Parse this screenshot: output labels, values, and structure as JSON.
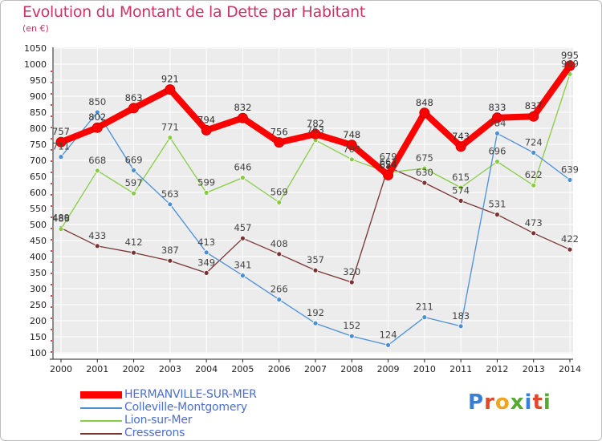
{
  "chart_data": {
    "type": "line",
    "title": "Evolution du Montant de la Dette par Habitant",
    "unit_label": "(en €)",
    "x": [
      "2000",
      "2001",
      "2002",
      "2003",
      "2004",
      "2005",
      "2006",
      "2007",
      "2008",
      "2009",
      "2010",
      "2011",
      "2012",
      "2013",
      "2014"
    ],
    "ylim": [
      100,
      1050
    ],
    "yticks": [
      100,
      150,
      200,
      250,
      300,
      350,
      400,
      450,
      500,
      550,
      600,
      650,
      700,
      750,
      800,
      850,
      900,
      950,
      1000,
      1050
    ],
    "grid": true,
    "legend_position": "bottom-left",
    "series": [
      {
        "name": "HERMANVILLE-SUR-MER",
        "color": "#ff0000",
        "values": [
          757,
          802,
          863,
          921,
          794,
          832,
          756,
          782,
          748,
          654,
          848,
          743,
          833,
          837,
          995
        ]
      },
      {
        "name": "Colleville-Montgomery",
        "color": "#4a90d9",
        "values": [
          711,
          850,
          669,
          563,
          413,
          341,
          266,
          192,
          152,
          124,
          211,
          183,
          784,
          724,
          639
        ]
      },
      {
        "name": "Lion-sur-Mer",
        "color": "#88cc44",
        "values": [
          486,
          668,
          597,
          771,
          599,
          646,
          569,
          763,
          703,
          662,
          675,
          615,
          696,
          622,
          969
        ]
      },
      {
        "name": "Cresserons",
        "color": "#7a3333",
        "values": [
          489,
          433,
          412,
          387,
          349,
          457,
          408,
          357,
          320,
          679,
          630,
          574,
          531,
          473,
          422
        ]
      }
    ]
  },
  "brand": {
    "letters": [
      "P",
      "r",
      "o",
      "x",
      "i",
      "t",
      "i"
    ],
    "colors": [
      "#3a7fd5",
      "#e04a2a",
      "#f2a31f",
      "#55aa33",
      "#3a7fd5",
      "#e04a2a",
      "#55aa33"
    ]
  }
}
